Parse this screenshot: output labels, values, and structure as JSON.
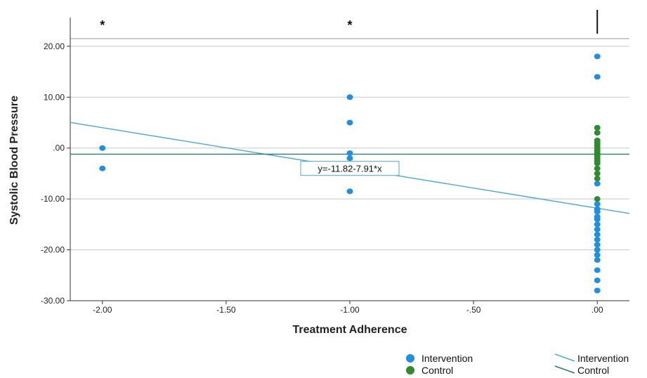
{
  "colors": {
    "intervention": "#1f8fe0",
    "control": "#2e8b2e",
    "intervention_line": "#4aa8e0",
    "control_line": "#2b7a78",
    "grid": "#c8c8c8",
    "axis": "#333333"
  },
  "chart_data": {
    "type": "scatter",
    "title": "",
    "xlabel": "Treatment Adherence",
    "ylabel": "Systolic Blood Pressure",
    "xlim": [
      -2.13,
      0.13
    ],
    "ylim": [
      -30,
      21.5
    ],
    "x_ticks": [
      {
        "value": -2.0,
        "label": "-2.00"
      },
      {
        "value": -1.5,
        "label": "-1.50"
      },
      {
        "value": -1.0,
        "label": "-1.00"
      },
      {
        "value": -0.5,
        "label": "-.50"
      },
      {
        "value": 0.0,
        "label": ".00"
      }
    ],
    "y_ticks": [
      {
        "value": 20,
        "label": "20.00"
      },
      {
        "value": 10,
        "label": "10.00"
      },
      {
        "value": 0,
        "label": ".00"
      },
      {
        "value": -10,
        "label": "-10.00"
      },
      {
        "value": -20,
        "label": "-20.00"
      },
      {
        "value": -30,
        "label": "-30.00"
      }
    ],
    "grid": true,
    "legend_position": "bottom-right",
    "series": [
      {
        "name": "Intervention",
        "kind": "points",
        "color_key": "intervention",
        "points": [
          [
            -2.0,
            0
          ],
          [
            -2.0,
            -4
          ],
          [
            -1.0,
            10
          ],
          [
            -1.0,
            5
          ],
          [
            -1.0,
            -1
          ],
          [
            -1.0,
            -2
          ],
          [
            -1.0,
            -8.5
          ],
          [
            0.0,
            18
          ],
          [
            0.0,
            14
          ],
          [
            0.0,
            -7
          ],
          [
            0.0,
            -11
          ],
          [
            0.0,
            -12
          ],
          [
            0.0,
            -12.5
          ],
          [
            0.0,
            -13.5
          ],
          [
            0.0,
            -14
          ],
          [
            0.0,
            -15
          ],
          [
            0.0,
            -16
          ],
          [
            0.0,
            -17
          ],
          [
            0.0,
            -18
          ],
          [
            0.0,
            -19
          ],
          [
            0.0,
            -20
          ],
          [
            0.0,
            -21
          ],
          [
            0.0,
            -22
          ],
          [
            0.0,
            -24
          ],
          [
            0.0,
            -26
          ],
          [
            0.0,
            -28
          ]
        ]
      },
      {
        "name": "Control",
        "kind": "points",
        "color_key": "control",
        "points": [
          [
            0.0,
            4
          ],
          [
            0.0,
            3
          ],
          [
            0.0,
            1.5
          ],
          [
            0.0,
            1
          ],
          [
            0.0,
            0.5
          ],
          [
            0.0,
            0
          ],
          [
            0.0,
            -0.5
          ],
          [
            0.0,
            -1
          ],
          [
            0.0,
            -1.5
          ],
          [
            0.0,
            -2
          ],
          [
            0.0,
            -2.5
          ],
          [
            0.0,
            -3
          ],
          [
            0.0,
            -4
          ],
          [
            0.0,
            -5
          ],
          [
            0.0,
            -6
          ],
          [
            0.0,
            -10
          ]
        ]
      },
      {
        "name": "Intervention",
        "kind": "fit-line",
        "color_key": "intervention_line",
        "intercept": -11.82,
        "slope": -7.91
      },
      {
        "name": "Control",
        "kind": "fit-line",
        "color_key": "control_line",
        "intercept": -1.2,
        "slope": 0
      }
    ],
    "annotations": {
      "equation": {
        "text": "y=-11.82-7.91*x",
        "x": -1.0,
        "y": -4
      },
      "stars": [
        {
          "text": "*",
          "x": -2.0
        },
        {
          "text": "*",
          "x": -1.0
        }
      ],
      "bar_marker_x": 0.0
    },
    "legend": {
      "points": [
        {
          "label": "Intervention",
          "color_key": "intervention"
        },
        {
          "label": "Control",
          "color_key": "control"
        }
      ],
      "lines": [
        {
          "label": "Intervention",
          "color_key": "intervention_line"
        },
        {
          "label": "Control",
          "color_key": "control_line"
        }
      ]
    }
  }
}
